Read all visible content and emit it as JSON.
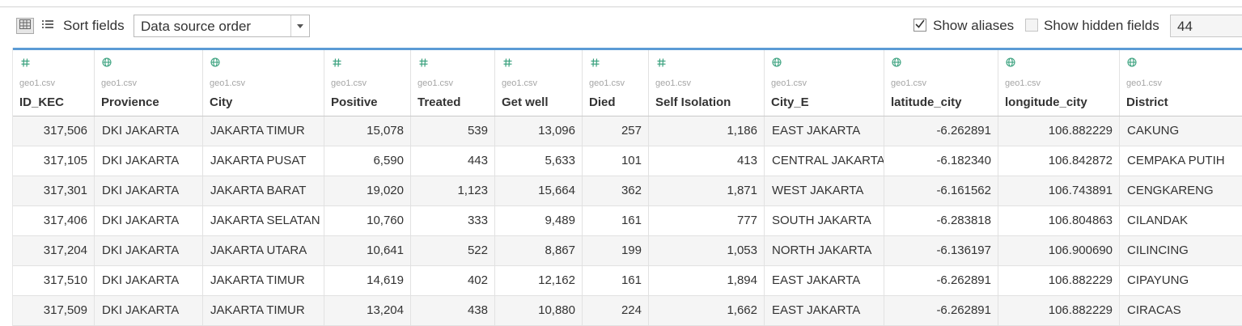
{
  "toolbar": {
    "sort_label": "Sort fields",
    "sort_value": "Data source order",
    "show_aliases_label": "Show aliases",
    "show_aliases_checked": true,
    "show_hidden_label": "Show hidden fields",
    "show_hidden_checked": false,
    "rows_value": "44",
    "icons": [
      "grid-view-icon",
      "list-view-icon",
      "chevron-down-icon",
      "checkmark-icon"
    ]
  },
  "colors": {
    "accent": "#5b9bd5",
    "type_icon": "#3aa17e",
    "row_alt": "#f5f5f5"
  },
  "columns": [
    {
      "type": "number",
      "icon": "number-type-icon",
      "source": "geo1.csv",
      "name": "ID_KEC"
    },
    {
      "type": "geo",
      "icon": "globe-type-icon",
      "source": "geo1.csv",
      "name": "Provience"
    },
    {
      "type": "geo",
      "icon": "globe-type-icon",
      "source": "geo1.csv",
      "name": "City"
    },
    {
      "type": "number",
      "icon": "number-type-icon",
      "source": "geo1.csv",
      "name": "Positive"
    },
    {
      "type": "number",
      "icon": "number-type-icon",
      "source": "geo1.csv",
      "name": "Treated"
    },
    {
      "type": "number",
      "icon": "number-type-icon",
      "source": "geo1.csv",
      "name": "Get well"
    },
    {
      "type": "number",
      "icon": "number-type-icon",
      "source": "geo1.csv",
      "name": "Died"
    },
    {
      "type": "number",
      "icon": "number-type-icon",
      "source": "geo1.csv",
      "name": "Self Isolation"
    },
    {
      "type": "geo",
      "icon": "globe-type-icon",
      "source": "geo1.csv",
      "name": "City_E"
    },
    {
      "type": "geo",
      "icon": "globe-type-icon",
      "source": "geo1.csv",
      "name": "latitude_city"
    },
    {
      "type": "geo",
      "icon": "globe-type-icon",
      "source": "geo1.csv",
      "name": "longitude_city"
    },
    {
      "type": "geo",
      "icon": "globe-type-icon",
      "source": "geo1.csv",
      "name": "District"
    }
  ],
  "rows": [
    [
      "317,506",
      "DKI JAKARTA",
      "JAKARTA TIMUR",
      "15,078",
      "539",
      "13,096",
      "257",
      "1,186",
      "EAST JAKARTA",
      "-6.262891",
      "106.882229",
      "CAKUNG"
    ],
    [
      "317,105",
      "DKI JAKARTA",
      "JAKARTA PUSAT",
      "6,590",
      "443",
      "5,633",
      "101",
      "413",
      "CENTRAL JAKARTA",
      "-6.182340",
      "106.842872",
      "CEMPAKA PUTIH"
    ],
    [
      "317,301",
      "DKI JAKARTA",
      "JAKARTA BARAT",
      "19,020",
      "1,123",
      "15,664",
      "362",
      "1,871",
      "WEST JAKARTA",
      "-6.161562",
      "106.743891",
      "CENGKARENG"
    ],
    [
      "317,406",
      "DKI JAKARTA",
      "JAKARTA SELATAN",
      "10,760",
      "333",
      "9,489",
      "161",
      "777",
      "SOUTH JAKARTA",
      "-6.283818",
      "106.804863",
      "CILANDAK"
    ],
    [
      "317,204",
      "DKI JAKARTA",
      "JAKARTA UTARA",
      "10,641",
      "522",
      "8,867",
      "199",
      "1,053",
      "NORTH JAKARTA",
      "-6.136197",
      "106.900690",
      "CILINCING"
    ],
    [
      "317,510",
      "DKI JAKARTA",
      "JAKARTA TIMUR",
      "14,619",
      "402",
      "12,162",
      "161",
      "1,894",
      "EAST JAKARTA",
      "-6.262891",
      "106.882229",
      "CIPAYUNG"
    ],
    [
      "317,509",
      "DKI JAKARTA",
      "JAKARTA TIMUR",
      "13,204",
      "438",
      "10,880",
      "224",
      "1,662",
      "EAST JAKARTA",
      "-6.262891",
      "106.882229",
      "CIRACAS"
    ]
  ]
}
